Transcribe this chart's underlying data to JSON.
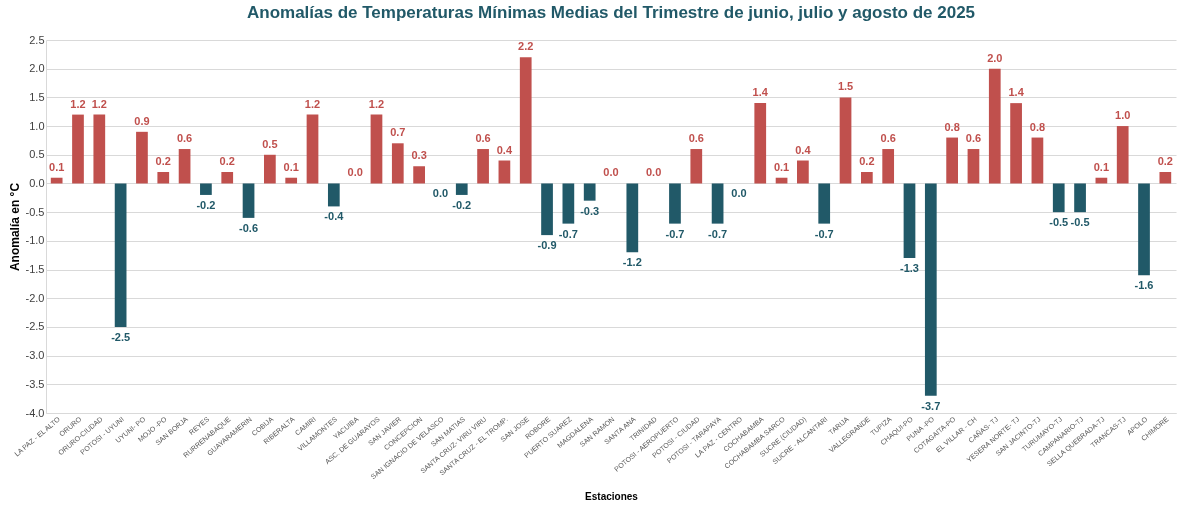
{
  "chart_data": {
    "type": "bar",
    "title": "Anomalías de Temperaturas Mínimas Medias del Trimestre de junio, julio y agosto de 2025",
    "xlabel": "Estaciones",
    "ylabel": "Anomalía en °C",
    "categories": [
      "LA PAZ - EL ALTO",
      "ORURO",
      "ORURO-CIUDAD",
      "POTOSI - UYUNI",
      "UYUNI- PO",
      "MOJO -PO",
      "SAN BORJA",
      "REYES",
      "RURRENABAQUE",
      "GUAYARAMERIN",
      "COBIJA",
      "RIBERALTA",
      "CAMIRI",
      "VILLAMONTES",
      "YACUIBA",
      "ASC. DE GUARAYOS",
      "SAN JAVIER",
      "CONCEPCION",
      "SAN IGNACIO DE VELASCO",
      "SAN MATIAS",
      "SANTA CRUZ- VIRU VIRU",
      "SANTA CRUZ - EL TROMP.",
      "SAN JOSE",
      "ROBORE",
      "PUERTO SUAREZ",
      "MAGDALENA",
      "SAN RAMON",
      "SANTA ANA",
      "TRINIDAD",
      "POTOSI - AEROPUERTO",
      "POTOSI - CIUDAD",
      "POTOSI - TARAPAYA",
      "LA PAZ - CENTRO",
      "COCHABAMBA",
      "COCHABAMBA SARCO",
      "SUCRE (CIUDAD)",
      "SUCRE - ALCANTARI",
      "TARIJA",
      "VALLEGRANDE",
      "TUPIZA",
      "CHAQUI-PO",
      "PUNA -PO",
      "COTAGAITA-PO",
      "EL VILLAR - CH",
      "CAÑAS- TJ",
      "YESERA NORTE- TJ",
      "SAN JACINTO-TJ",
      "TURUMAYO-TJ",
      "CAMPANARIO-TJ",
      "SELLA QUEBRADA-TJ",
      "TRANCAS-TJ",
      "APOLO",
      "CHIMORE"
    ],
    "values": [
      0.1,
      1.2,
      1.2,
      -2.5,
      0.9,
      0.2,
      0.6,
      -0.2,
      0.2,
      -0.6,
      0.5,
      0.1,
      1.2,
      -0.4,
      0.0,
      1.2,
      0.7,
      0.3,
      0.0,
      -0.2,
      0.6,
      0.4,
      2.2,
      -0.9,
      -0.7,
      -0.3,
      0.0,
      -1.2,
      0.0,
      -0.7,
      0.6,
      -0.7,
      0.0,
      1.4,
      0.1,
      0.4,
      -0.7,
      1.5,
      0.2,
      0.6,
      -1.3,
      -3.7,
      0.8,
      0.6,
      2.0,
      1.4,
      0.8,
      -0.5,
      -0.5,
      0.1,
      1.0,
      -1.6,
      0.2
    ],
    "colors": [
      "#c0504d",
      "#c0504d",
      "#c0504d",
      "#215968",
      "#c0504d",
      "#c0504d",
      "#c0504d",
      "#215968",
      "#c0504d",
      "#215968",
      "#c0504d",
      "#c0504d",
      "#c0504d",
      "#215968",
      "#c0504d",
      "#c0504d",
      "#c0504d",
      "#c0504d",
      "#215968",
      "#215968",
      "#c0504d",
      "#c0504d",
      "#c0504d",
      "#215968",
      "#215968",
      "#215968",
      "#c0504d",
      "#215968",
      "#c0504d",
      "#215968",
      "#c0504d",
      "#215968",
      "#215968",
      "#c0504d",
      "#c0504d",
      "#c0504d",
      "#215968",
      "#c0504d",
      "#c0504d",
      "#c0504d",
      "#215968",
      "#215968",
      "#c0504d",
      "#c0504d",
      "#c0504d",
      "#c0504d",
      "#c0504d",
      "#215968",
      "#215968",
      "#c0504d",
      "#c0504d",
      "#215968",
      "#c0504d"
    ],
    "value_labels": [
      "0.1",
      "1.2",
      "1.2",
      "-2.5",
      "0.9",
      "0.2",
      "0.6",
      "-0.2",
      "0.2",
      "-0.6",
      "0.5",
      "0.1",
      "1.2",
      "-0.4",
      "0.0",
      "1.2",
      "0.7",
      "0.3",
      "0.0",
      "-0.2",
      "0.6",
      "0.4",
      "2.2",
      "-0.9",
      "-0.7",
      "-0.3",
      "0.0",
      "-1.2",
      "0.0",
      "-0.7",
      "0.6",
      "-0.7",
      "0.0",
      "1.4",
      "0.1",
      "0.4",
      "-0.7",
      "1.5",
      "0.2",
      "0.6",
      "-1.3",
      "-3.7",
      "0.8",
      "0.6",
      "2.0",
      "1.4",
      "0.8",
      "-0.5",
      "-0.5",
      "0.1",
      "1.0",
      "-1.6",
      "0.2"
    ],
    "grid": "y",
    "ylim": [
      -4.0,
      2.5
    ],
    "yticks": [
      {
        "value": -4,
        "label": "-4.0"
      },
      {
        "value": -3.5,
        "label": "-3.5"
      },
      {
        "value": -3,
        "label": "-3.0"
      },
      {
        "value": -2.5,
        "label": "-2.5"
      },
      {
        "value": -2,
        "label": "-2.0"
      },
      {
        "value": -1.5,
        "label": "-1.5"
      },
      {
        "value": -1,
        "label": "-1.0"
      },
      {
        "value": -0.5,
        "label": "-0.5"
      },
      {
        "value": 0,
        "label": "0.0"
      },
      {
        "value": 0.5,
        "label": "0.5"
      },
      {
        "value": 1,
        "label": "1.0"
      },
      {
        "value": 1.5,
        "label": "1.5"
      },
      {
        "value": 2,
        "label": "2.0"
      },
      {
        "value": 2.5,
        "label": "2.5"
      }
    ]
  }
}
